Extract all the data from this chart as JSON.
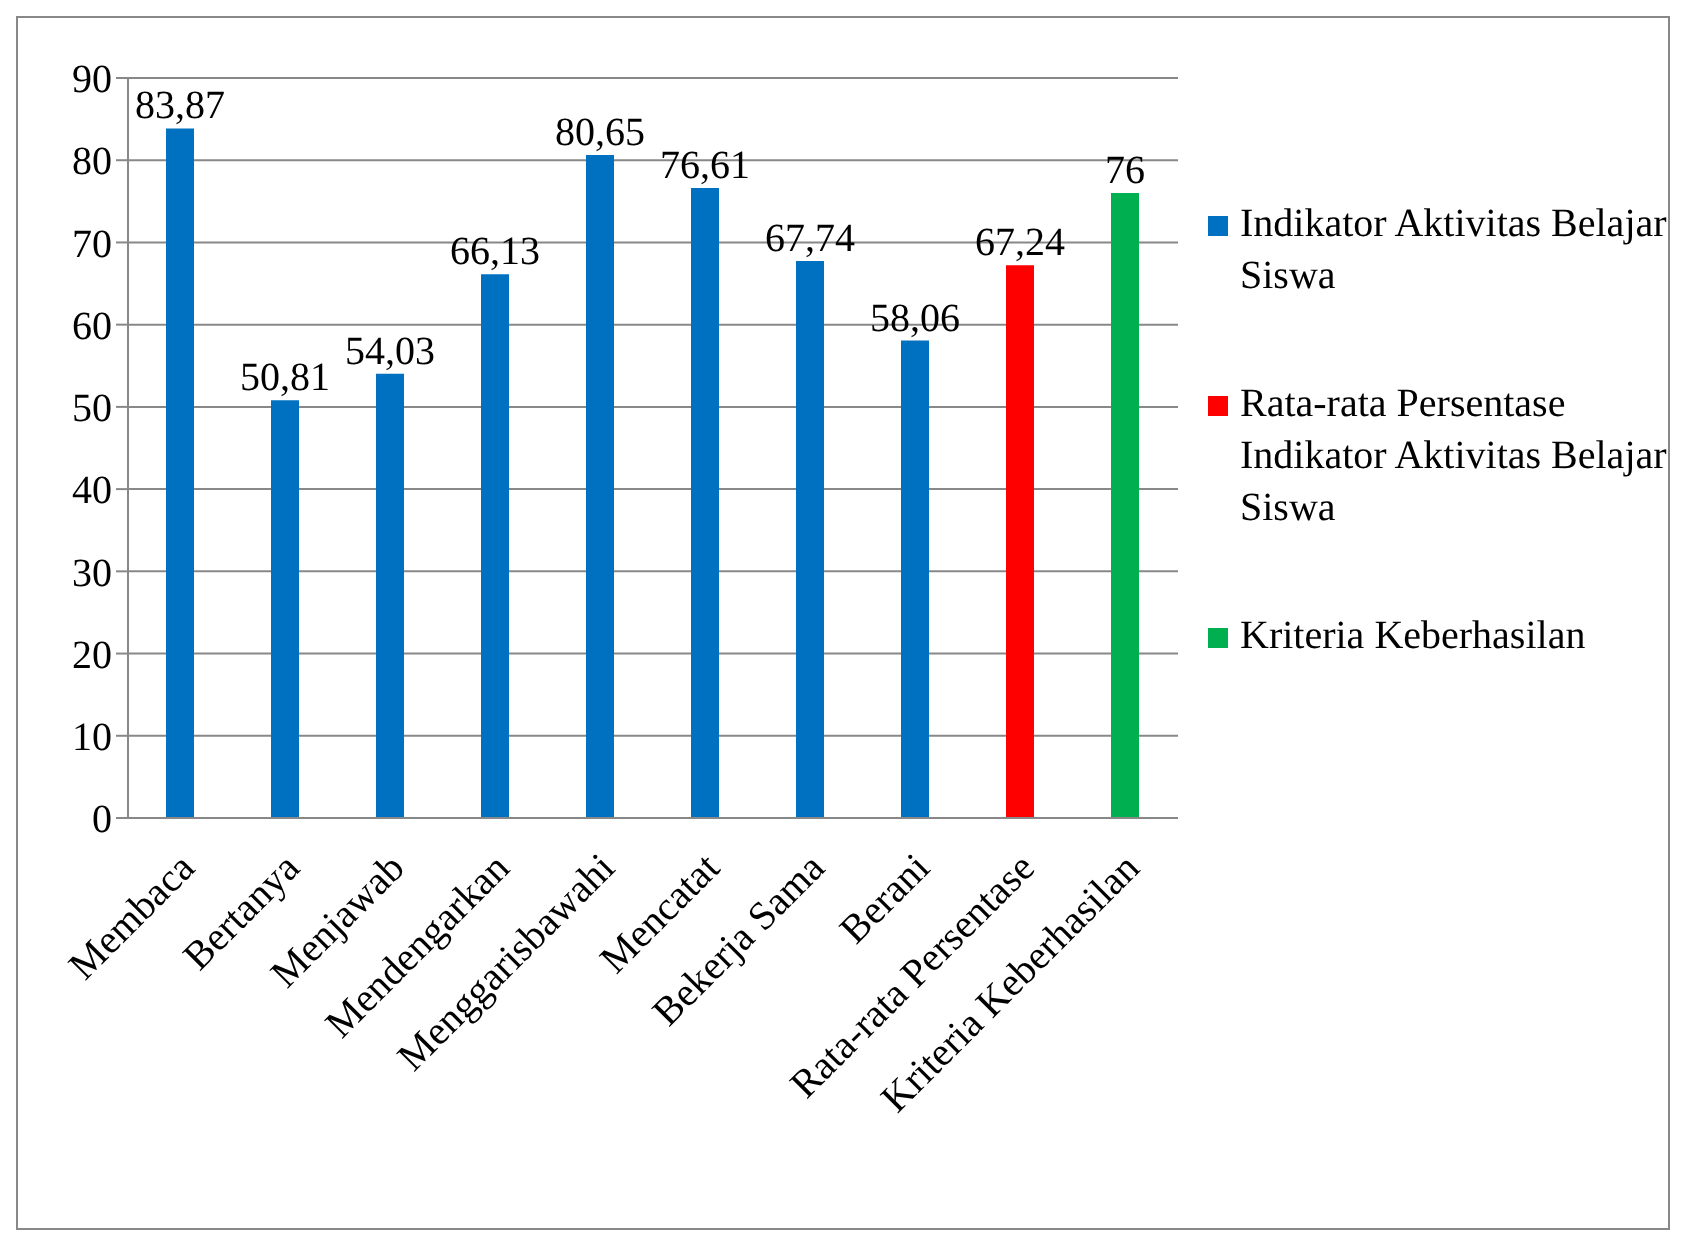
{
  "chart_data": {
    "type": "bar",
    "stacked": true,
    "categories": [
      "Membaca",
      "Bertanya",
      "Menjawab",
      "Mendengarkan",
      "Menggarisbawahi",
      "Mencatat",
      "Bekerja Sama",
      "Berani",
      "Rata-rata Persentase",
      "Kriteria Keberhasilan"
    ],
    "series": [
      {
        "name": "Indikator Aktivitas Belajar Siswa",
        "color": "#0070c0",
        "values": [
          83.87,
          50.81,
          54.03,
          66.13,
          80.65,
          76.61,
          67.74,
          58.06,
          null,
          null
        ],
        "value_labels": [
          "83,87",
          "50,81",
          "54,03",
          "66,13",
          "80,65",
          "76,61",
          "67,74",
          "58,06",
          null,
          null
        ]
      },
      {
        "name": "Rata-rata Persentase Indikator Aktivitas Belajar Siswa",
        "color": "#ff0000",
        "values": [
          null,
          null,
          null,
          null,
          null,
          null,
          null,
          null,
          67.24,
          null
        ],
        "value_labels": [
          null,
          null,
          null,
          null,
          null,
          null,
          null,
          null,
          "67,24",
          null
        ]
      },
      {
        "name": "Kriteria Keberhasilan",
        "color": "#00b050",
        "values": [
          null,
          null,
          null,
          null,
          null,
          null,
          null,
          null,
          null,
          76
        ],
        "value_labels": [
          null,
          null,
          null,
          null,
          null,
          null,
          null,
          null,
          null,
          "76"
        ]
      }
    ],
    "ylim": [
      0,
      90
    ],
    "yticks": [
      0,
      10,
      20,
      30,
      40,
      50,
      60,
      70,
      80,
      90
    ],
    "grid": "y",
    "legend": "right"
  }
}
